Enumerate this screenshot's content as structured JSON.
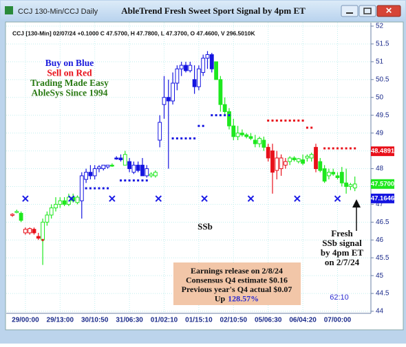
{
  "window_title": "CCJ 130-Min/CCJ Daily",
  "chart_data": {
    "type": "candlestick",
    "title": "AbleTrend Fresh Sweet Sport Signal by 4pm ET",
    "header": "CCJ [130-Min] 02/07/24 +0.1000 C 47.5700, H 47.7800, L 47.3700, O 47.4600, V 296.5010K",
    "legend_text": [
      {
        "text": "Buy on Blue",
        "color": "#1a1adc"
      },
      {
        "text": "Sell on Red",
        "color": "#e8101a"
      },
      {
        "text": "Trading Made Easy",
        "color": "#2a7a14"
      },
      {
        "text": "AbleSys Since 1994",
        "color": "#2a7a14"
      }
    ],
    "categories": [
      null,
      null,
      null,
      "29/00:00",
      null,
      null,
      null,
      null,
      null,
      null,
      null,
      "29/13:00",
      null,
      null,
      null,
      null,
      null,
      null,
      null,
      "30/10:50",
      null,
      null,
      null,
      null,
      null,
      null,
      null,
      "31/06:30",
      null,
      null,
      null,
      null,
      null,
      null,
      null,
      "01/02:10",
      null,
      null,
      null,
      null,
      null,
      null,
      null,
      "01/15:10",
      null,
      null,
      null,
      null,
      null,
      null,
      null,
      "02/10:50",
      null,
      null,
      null,
      null,
      null,
      null,
      null,
      "05/06:30",
      null,
      null,
      null,
      null,
      null,
      null,
      null,
      "06/04:20",
      null,
      null,
      null,
      null,
      null,
      null,
      null,
      "07/00:00",
      null,
      null,
      null,
      null
    ],
    "candles": {
      "open": [
        46.7,
        46.78,
        46.75,
        46.2,
        46.2,
        46.3,
        46.1,
        46.0,
        46.5,
        46.7,
        46.9,
        47.0,
        47.1,
        47.0,
        47.2,
        47.05,
        47.1,
        47.7,
        47.9,
        47.8,
        48.0,
        48.0,
        48.05,
        48.1,
        48.3,
        48.3,
        48.1,
        48.2,
        47.9,
        48.1,
        48.1,
        47.8,
        47.8,
        47.8,
        48.8,
        49.8,
        50.0,
        49.9,
        50.4,
        50.8,
        50.9,
        50.75,
        50.5,
        50.3,
        50.7,
        51.1,
        51.2,
        51.0,
        50.5,
        49.8,
        49.6,
        49.2,
        48.9,
        49.0,
        48.95,
        48.9,
        48.8,
        48.7,
        48.8,
        48.6,
        48.5,
        47.95,
        48.0,
        48.1,
        48.2,
        48.3,
        48.2,
        48.25,
        48.3,
        48.3,
        48.6,
        48.2,
        48.0,
        47.8,
        47.9,
        47.8,
        47.9,
        47.6,
        47.5,
        47.46
      ],
      "high": [
        46.75,
        46.85,
        46.8,
        46.35,
        46.35,
        46.35,
        46.2,
        46.6,
        46.8,
        47.0,
        47.2,
        47.2,
        47.2,
        47.3,
        47.3,
        47.25,
        47.9,
        48.0,
        48.1,
        48.1,
        48.1,
        48.1,
        48.1,
        48.15,
        48.35,
        48.4,
        48.5,
        48.3,
        48.2,
        48.2,
        48.3,
        48.1,
        47.9,
        47.95,
        49.5,
        50.6,
        50.5,
        50.7,
        50.9,
        51.0,
        51.0,
        51.0,
        50.9,
        50.9,
        51.2,
        51.3,
        51.25,
        51.0,
        50.6,
        50.0,
        49.7,
        49.4,
        49.2,
        49.1,
        49.0,
        49.0,
        48.95,
        48.9,
        48.9,
        48.7,
        48.7,
        48.5,
        48.4,
        48.3,
        48.35,
        48.35,
        48.3,
        48.4,
        48.4,
        48.45,
        48.7,
        48.3,
        48.1,
        48.0,
        48.0,
        47.9,
        48.05,
        48.0,
        47.6,
        47.78
      ],
      "low": [
        46.65,
        46.75,
        46.5,
        46.15,
        46.15,
        46.15,
        46.0,
        45.3,
        46.4,
        46.6,
        46.8,
        46.9,
        46.95,
        46.95,
        47.05,
        47.0,
        46.6,
        47.6,
        47.7,
        47.7,
        47.9,
        47.95,
        48.0,
        48.05,
        48.25,
        48.2,
        48.1,
        47.9,
        47.85,
        47.9,
        47.8,
        47.75,
        47.75,
        47.75,
        48.6,
        49.4,
        48.0,
        49.8,
        50.2,
        50.6,
        50.7,
        50.7,
        50.1,
        50.2,
        50.6,
        50.8,
        50.7,
        50.5,
        49.6,
        49.5,
        49.1,
        48.8,
        48.8,
        48.9,
        48.85,
        48.8,
        48.6,
        48.6,
        48.5,
        48.2,
        47.3,
        47.7,
        47.8,
        48.0,
        48.1,
        48.2,
        48.15,
        48.1,
        48.2,
        48.2,
        47.9,
        47.9,
        47.6,
        47.7,
        47.8,
        47.7,
        47.5,
        47.3,
        47.4,
        47.37
      ],
      "close": [
        46.72,
        46.8,
        46.55,
        46.3,
        46.32,
        46.2,
        46.05,
        46.5,
        46.7,
        46.9,
        47.0,
        47.1,
        47.0,
        47.2,
        47.1,
        47.2,
        47.8,
        47.9,
        47.8,
        48.0,
        48.05,
        48.1,
        48.1,
        48.1,
        48.3,
        48.25,
        48.4,
        48.0,
        48.1,
        47.95,
        47.8,
        48.0,
        47.85,
        47.9,
        49.3,
        50.0,
        49.9,
        50.4,
        50.8,
        50.9,
        50.75,
        50.9,
        50.3,
        50.8,
        51.1,
        51.2,
        50.8,
        50.5,
        49.8,
        49.6,
        49.2,
        48.9,
        49.0,
        48.95,
        48.9,
        48.85,
        48.7,
        48.85,
        48.6,
        48.3,
        47.9,
        48.3,
        48.3,
        48.2,
        48.3,
        48.25,
        48.28,
        48.15,
        48.35,
        48.4,
        48.0,
        47.95,
        47.65,
        47.9,
        47.85,
        47.75,
        47.6,
        47.5,
        47.55,
        47.57
      ],
      "colors": [
        "#e8101a",
        "#1ee81e",
        "#1ee81e",
        "#e8101a",
        "#e8101a",
        "#e8101a",
        "#e8101a",
        "#1ee81e",
        "#1ee81e",
        "#1ee81e",
        "#1ee81e",
        "#1ee81e",
        "#1ee81e",
        "#1ee81e",
        "#1ee81e",
        "#1ee81e",
        "#1414e0",
        "#1414e0",
        "#1414e0",
        "#1414e0",
        "#1414e0",
        "#1414e0",
        "#1414e0",
        "#1ee81e",
        "#1414e0",
        "#1414e0",
        "#1ee81e",
        "#1414e0",
        "#1414e0",
        "#1414e0",
        "#1414e0",
        "#1414e0",
        "#1ee81e",
        "#1ee81e",
        "#1414e0",
        "#1414e0",
        "#1414e0",
        "#1414e0",
        "#1414e0",
        "#1414e0",
        "#1414e0",
        "#1414e0",
        "#1414e0",
        "#1414e0",
        "#1414e0",
        "#1414e0",
        "#1414e0",
        "#1ee81e",
        "#1ee81e",
        "#1ee81e",
        "#1ee81e",
        "#1ee81e",
        "#1ee81e",
        "#1ee81e",
        "#1ee81e",
        "#1ee81e",
        "#1ee81e",
        "#1ee81e",
        "#1ee81e",
        "#e8101a",
        "#e8101a",
        "#e8101a",
        "#e8101a",
        "#e8101a",
        "#1ee81e",
        "#1ee81e",
        "#1ee81e",
        "#1ee81e",
        "#1ee81e",
        "#1ee81e",
        "#e8101a",
        "#1ee81e",
        "#1ee81e",
        "#1ee81e",
        "#1ee81e",
        "#1ee81e",
        "#1ee81e",
        "#1ee81e",
        "#1ee81e",
        "#1ee81e"
      ]
    },
    "stops": [
      {
        "color": "#1414e0",
        "values": [
          null,
          null,
          null,
          null,
          null,
          null,
          null,
          null,
          null,
          null,
          null,
          null,
          null,
          null,
          null,
          null,
          null,
          47.45,
          47.45,
          47.45,
          47.45,
          47.45,
          47.45,
          null,
          null,
          47.67,
          47.67,
          47.67,
          47.67,
          47.67,
          47.67,
          47.67,
          null,
          null,
          null,
          null,
          null,
          48.85,
          48.85,
          48.85,
          48.85,
          48.85,
          48.85,
          49.2,
          49.2,
          null,
          49.5,
          49.5,
          49.5,
          49.5,
          49.5,
          null,
          null,
          null,
          null,
          null,
          null,
          null,
          null,
          null,
          null,
          null,
          null,
          null,
          null,
          null,
          null,
          null,
          null,
          null,
          null,
          null,
          null,
          null,
          null,
          null,
          null,
          null,
          null,
          null
        ]
      },
      {
        "color": "#e8101a",
        "values": [
          null,
          null,
          null,
          null,
          null,
          null,
          null,
          46.0,
          null,
          null,
          null,
          null,
          null,
          null,
          null,
          null,
          null,
          null,
          null,
          null,
          null,
          null,
          null,
          null,
          null,
          null,
          null,
          null,
          null,
          null,
          null,
          null,
          null,
          null,
          null,
          null,
          null,
          null,
          null,
          null,
          null,
          null,
          null,
          null,
          null,
          null,
          null,
          null,
          null,
          null,
          null,
          null,
          null,
          null,
          null,
          null,
          null,
          null,
          null,
          49.35,
          49.35,
          49.35,
          49.35,
          49.35,
          49.35,
          49.35,
          49.35,
          49.35,
          49.15,
          49.15,
          null,
          null,
          48.57,
          48.57,
          48.57,
          48.57,
          48.57,
          48.57,
          48.57,
          48.57
        ]
      }
    ],
    "cycle_marks": {
      "x": [
        3,
        13.6,
        23,
        33.7,
        44.3,
        55,
        65.7,
        75
      ],
      "y": 47.16,
      "color": "#1a1ae6"
    },
    "ylim": [
      44,
      52
    ],
    "yticks": [
      44,
      44.5,
      45,
      45.5,
      46,
      46.5,
      47,
      47.5,
      48,
      48.5,
      49,
      49.5,
      50,
      50.5,
      51,
      51.5,
      52
    ],
    "grid": true,
    "price_labels": [
      {
        "value": 48.4891,
        "color": "#e8101a"
      },
      {
        "value": 47.57,
        "label": "47.5700",
        "color": "#1ee81e"
      },
      {
        "value": 47.1646,
        "color": "#1414e0"
      }
    ],
    "signal_label": "SSb",
    "fresh_note": [
      "Fresh",
      "SSb signal",
      "by 4pm ET",
      "on 2/7/24"
    ],
    "earnings_note": {
      "lines": [
        "Earnings release on 2/8/24",
        "Consensus Q4 estimate $0.16",
        "Previous year's Q4 actual $0.07"
      ],
      "up_prefix": "Up",
      "up_value": "128.57%"
    },
    "timer": "62:10"
  }
}
